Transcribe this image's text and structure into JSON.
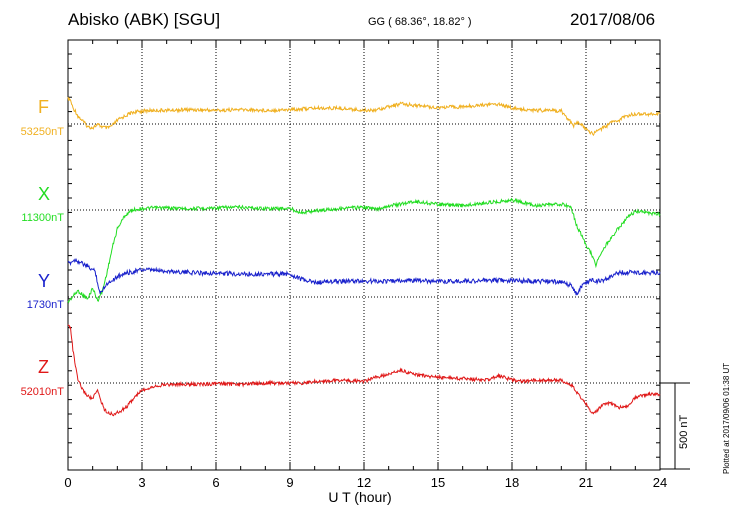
{
  "header": {
    "station": "Abisko (ABK)  [SGU]",
    "coords": "GG ( 68.36°,  18.82° )",
    "date": "2017/08/06"
  },
  "footer": {
    "plotted": "Plotted at 2017/09/06 01:38 UT"
  },
  "chart_data": {
    "type": "line",
    "xlabel": "U T (hour)",
    "xlim": [
      0,
      24
    ],
    "xticks": [
      "0",
      "3",
      "6",
      "9",
      "12",
      "15",
      "18",
      "21",
      "24"
    ],
    "scale_bar": {
      "label": "500 nT",
      "value_nT": 500
    },
    "colors": {
      "F": "#f0b020",
      "X": "#22dd22",
      "Y": "#1a22cc",
      "Z": "#e01818"
    },
    "series": [
      {
        "name": "F",
        "baseline_label": "53250nT",
        "baseline_nT": 53250,
        "x": [
          0,
          0.1,
          0.2,
          0.3,
          0.4,
          0.6,
          0.8,
          1.0,
          1.2,
          1.4,
          1.6,
          1.8,
          2.0,
          2.3,
          2.6,
          3.0,
          3.5,
          4,
          5,
          6,
          7,
          8,
          9,
          9.5,
          10,
          11,
          12,
          12.5,
          13,
          13.5,
          14,
          15,
          16,
          17,
          17.5,
          18,
          18.5,
          19,
          20,
          20.5,
          20.7,
          20.9,
          21.1,
          21.3,
          21.5,
          21.8,
          22.0,
          22.3,
          22.6,
          23,
          23.5,
          24
        ],
        "values": [
          175,
          165,
          110,
          90,
          55,
          20,
          -20,
          -25,
          -5,
          -20,
          -30,
          -10,
          25,
          55,
          80,
          90,
          95,
          95,
          100,
          95,
          100,
          95,
          100,
          105,
          110,
          110,
          95,
          100,
          120,
          140,
          130,
          115,
          120,
          135,
          140,
          110,
          100,
          95,
          90,
          -10,
          10,
          -20,
          -50,
          -70,
          -40,
          -20,
          10,
          20,
          55,
          70,
          70,
          70
        ]
      },
      {
        "name": "X",
        "baseline_label": "11300nT",
        "baseline_nT": 11300,
        "x": [
          0,
          0.2,
          0.4,
          0.6,
          0.8,
          1.0,
          1.2,
          1.4,
          1.6,
          1.8,
          2.0,
          2.3,
          2.6,
          3.0,
          3.5,
          4,
          5,
          6,
          7,
          8,
          9,
          9.5,
          10,
          11,
          12,
          12.5,
          13,
          13.5,
          14,
          15,
          16,
          17,
          17.5,
          18,
          18.5,
          19,
          20,
          20.4,
          20.6,
          20.8,
          21.0,
          21.2,
          21.4,
          21.6,
          21.9,
          22.3,
          22.7,
          23,
          23.5,
          24
        ],
        "values": [
          -640,
          -600,
          -560,
          -590,
          -620,
          -540,
          -630,
          -560,
          -420,
          -260,
          -130,
          -40,
          0,
          10,
          15,
          15,
          10,
          15,
          20,
          10,
          10,
          -20,
          -5,
          10,
          20,
          5,
          30,
          40,
          60,
          40,
          30,
          50,
          60,
          70,
          50,
          30,
          40,
          20,
          -100,
          -170,
          -240,
          -300,
          -380,
          -300,
          -220,
          -130,
          -50,
          -10,
          -20,
          -30
        ]
      },
      {
        "name": "Y",
        "baseline_label": "1730nT",
        "baseline_nT": 1730,
        "x": [
          0,
          0.3,
          0.6,
          0.9,
          1.1,
          1.3,
          1.5,
          1.8,
          2.2,
          3.0,
          4,
          5,
          6,
          7,
          8,
          9,
          9.5,
          10,
          11,
          12,
          13,
          14,
          15,
          16,
          17,
          18,
          19,
          20,
          20.4,
          20.6,
          20.9,
          21.2,
          21.5,
          21.8,
          22.3,
          23,
          24
        ],
        "values": [
          230,
          260,
          230,
          200,
          180,
          20,
          80,
          120,
          160,
          190,
          180,
          170,
          165,
          160,
          160,
          160,
          120,
          100,
          110,
          110,
          110,
          115,
          110,
          110,
          115,
          115,
          110,
          105,
          80,
          20,
          90,
          120,
          110,
          120,
          170,
          170,
          170
        ]
      },
      {
        "name": "Z",
        "baseline_label": "52010nT",
        "baseline_nT": 52010,
        "x": [
          0,
          0.1,
          0.2,
          0.3,
          0.4,
          0.6,
          0.8,
          1.0,
          1.2,
          1.35,
          1.5,
          1.8,
          2.1,
          2.4,
          2.7,
          3.0,
          3.5,
          4,
          5,
          6,
          7,
          8,
          9,
          9.5,
          10,
          11,
          12,
          12.5,
          13,
          13.5,
          14,
          15,
          16,
          17,
          17.5,
          18,
          18.5,
          19,
          20,
          20.4,
          20.6,
          20.8,
          21.1,
          21.3,
          21.6,
          22.0,
          22.3,
          22.7,
          23,
          23.5,
          24
        ],
        "values": [
          400,
          390,
          230,
          120,
          20,
          -50,
          -90,
          -110,
          -50,
          -130,
          -190,
          -220,
          -200,
          -160,
          -100,
          -50,
          -20,
          -10,
          -10,
          -5,
          -10,
          0,
          0,
          0,
          10,
          20,
          10,
          40,
          60,
          90,
          60,
          40,
          30,
          20,
          50,
          20,
          10,
          20,
          20,
          -10,
          -60,
          -100,
          -170,
          -220,
          -160,
          -140,
          -170,
          -160,
          -100,
          -80,
          -80
        ]
      }
    ]
  }
}
